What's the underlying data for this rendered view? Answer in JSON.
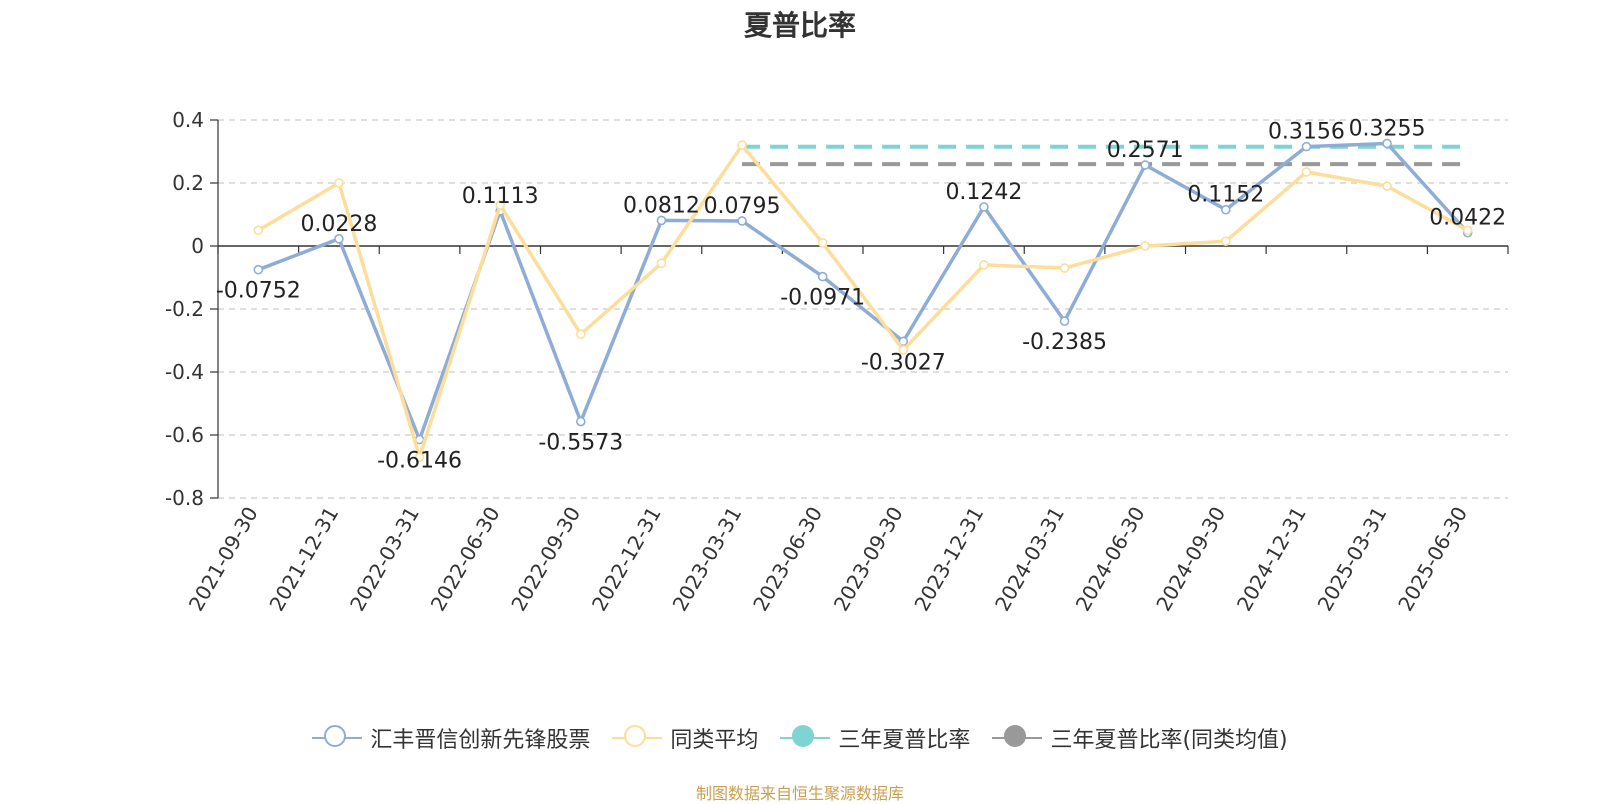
{
  "chart_data": {
    "type": "line",
    "title": "夏普比率",
    "categories": [
      "2021-09-30",
      "2021-12-31",
      "2022-03-31",
      "2022-06-30",
      "2022-09-30",
      "2022-12-31",
      "2023-03-31",
      "2023-06-30",
      "2023-09-30",
      "2023-12-31",
      "2024-03-31",
      "2024-06-30",
      "2024-09-30",
      "2024-12-31",
      "2025-03-31",
      "2025-06-30"
    ],
    "series": [
      {
        "name": "汇丰晋信创新先锋股票",
        "color": "#8eadd6",
        "values": [
          -0.0752,
          0.0228,
          -0.6146,
          0.1113,
          -0.5573,
          0.0812,
          0.0795,
          -0.0971,
          -0.3027,
          0.1242,
          -0.2385,
          0.2571,
          0.1152,
          0.3156,
          0.3255,
          0.0422
        ],
        "labels": [
          "-0.0752",
          "0.0228",
          "-0.6146",
          "0.1113",
          "-0.5573",
          "0.0812",
          "0.0795",
          "-0.0971",
          "-0.3027",
          "0.1242",
          "-0.2385",
          "0.2571",
          "0.1152",
          "0.3156",
          "0.3255",
          "0.0422"
        ]
      },
      {
        "name": "同类平均",
        "color": "#fddd9a",
        "values": [
          0.05,
          0.2,
          -0.67,
          0.13,
          -0.28,
          -0.055,
          0.32,
          0.01,
          -0.33,
          -0.06,
          -0.07,
          0.0,
          0.015,
          0.235,
          0.19,
          0.05
        ]
      },
      {
        "name": "三年夏普比率",
        "color": "#7fd3d3",
        "type": "dashed-reference",
        "value": 0.315,
        "from": "2023-03-31",
        "to": "2025-06-30"
      },
      {
        "name": "三年夏普比率(同类均值)",
        "color": "#999999",
        "type": "dashed-reference",
        "value": 0.26,
        "from": "2023-03-31",
        "to": "2025-06-30"
      }
    ],
    "yticks": [
      "0.4",
      "0.2",
      "0",
      "-0.2",
      "-0.4",
      "-0.6",
      "-0.8"
    ],
    "ylim": [
      -0.8,
      0.4
    ],
    "grid": true,
    "legend_position": "bottom-center"
  },
  "source_note": "制图数据来自恒生聚源数据库"
}
